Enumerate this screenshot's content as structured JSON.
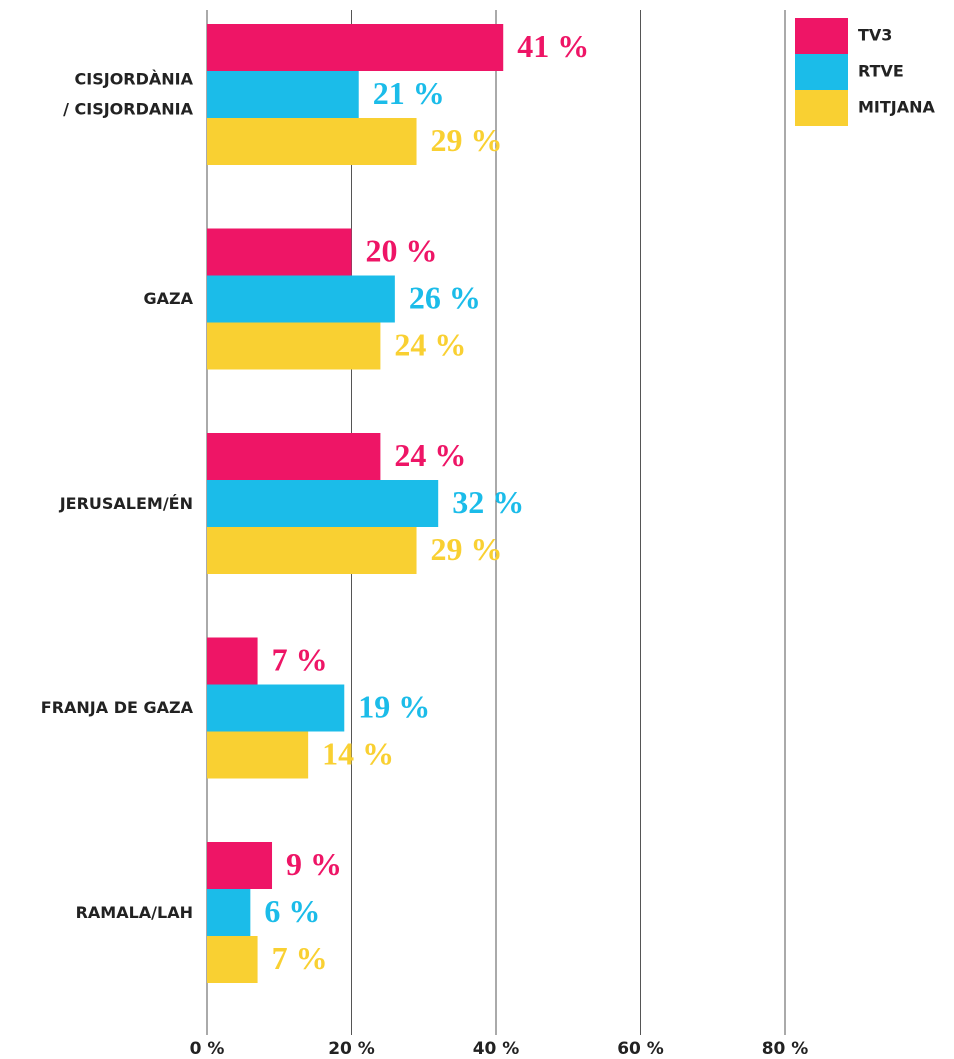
{
  "chart_data": {
    "type": "hbar",
    "categories": [
      "CISJORDÀNIA\n/ CISJORDANIA",
      "GAZA",
      "JERUSALEM/ÉN",
      "FRANJA DE GAZA",
      "RAMALA/LAH"
    ],
    "series": [
      {
        "name": "TV3",
        "color": "#ee1566",
        "values": [
          41,
          20,
          24,
          7,
          9
        ],
        "value_labels": [
          "41 %",
          "20 %",
          "24 %",
          "7 %",
          "9 %"
        ]
      },
      {
        "name": "RTVE",
        "color": "#1bbce9",
        "values": [
          21,
          26,
          32,
          19,
          6
        ],
        "value_labels": [
          "21 %",
          "26 %",
          "32 %",
          "19 %",
          "6 %"
        ]
      },
      {
        "name": "MITJANA",
        "color": "#f9d032",
        "values": [
          29,
          24,
          29,
          14,
          7
        ],
        "value_labels": [
          "29 %",
          "24 %",
          "29 %",
          "14 %",
          "7 %"
        ]
      }
    ],
    "xlim": [
      0,
      80
    ],
    "xticks": [
      {
        "value": 0,
        "label": "0 %"
      },
      {
        "value": 20,
        "label": "20 %"
      },
      {
        "value": 40,
        "label": "40 %"
      },
      {
        "value": 60,
        "label": "60 %"
      },
      {
        "value": 80,
        "label": "80 %"
      }
    ],
    "grid": true,
    "legend": "top-right"
  }
}
